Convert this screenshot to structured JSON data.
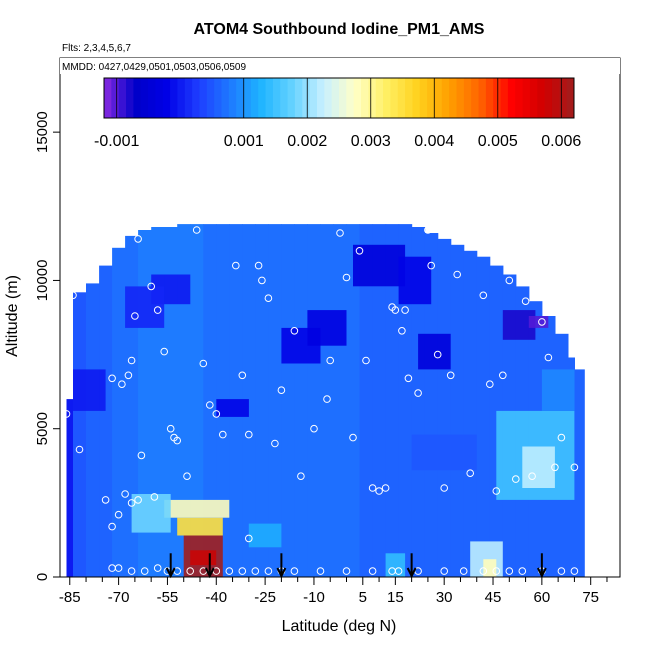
{
  "chart_data": {
    "type": "heatmap",
    "title": "ATOM4 Southbound Iodine_PM1_AMS",
    "subtitle_flights": "Flts: 2,3,4,5,6,7",
    "subtitle_dates": "MMDD: 0427,0429,0501,0503,0506,0509",
    "xlabel": "Latitude (deg N)",
    "ylabel": "Altitude (m)",
    "xlim": [
      -88,
      84
    ],
    "ylim": [
      0,
      17500
    ],
    "x_ticks": [
      -85,
      -70,
      -55,
      -40,
      -25,
      -10,
      5,
      15,
      30,
      45,
      60,
      75
    ],
    "x_minor_ticks": [
      -80,
      -75,
      -65,
      -60,
      -50,
      -45,
      -35,
      -30,
      -20,
      -15,
      -5,
      0,
      10,
      20,
      25,
      35,
      40,
      50,
      55,
      65,
      70,
      80
    ],
    "y_ticks": [
      0,
      5000,
      10000,
      15000
    ],
    "colorbar": {
      "min": -0.0012,
      "max": 0.0062,
      "tick_values": [
        -0.001,
        0.001,
        0.002,
        0.003,
        0.004,
        0.005,
        0.006
      ],
      "tick_labels": [
        "-0.001",
        "0.001",
        "0.002",
        "0.003",
        "0.004",
        "0.005",
        "0.006"
      ],
      "colors": [
        "#8a2be2",
        "#0000c8",
        "#0000e6",
        "#1e3cff",
        "#1e78ff",
        "#1eb4ff",
        "#64d2ff",
        "#c8f0ff",
        "#ffffc8",
        "#fff064",
        "#ffd21e",
        "#ffa000",
        "#ff6400",
        "#ff0000",
        "#d20000",
        "#a01e1e"
      ]
    },
    "curtain_columns": [
      [
        -86,
        0,
        6000,
        0.0
      ],
      [
        -84,
        0,
        9600,
        0.0005
      ],
      [
        -80,
        0,
        9900,
        0.0006
      ],
      [
        -76,
        0,
        10500,
        0.0006
      ],
      [
        -72,
        0,
        11100,
        0.0007
      ],
      [
        -68,
        0,
        11500,
        0.0007
      ],
      [
        -64,
        0,
        11700,
        0.0008
      ],
      [
        -60,
        0,
        11800,
        0.0008
      ],
      [
        -56,
        0,
        11800,
        0.0008
      ],
      [
        -52,
        0,
        11900,
        0.0008
      ],
      [
        -48,
        0,
        11900,
        0.0008
      ],
      [
        -44,
        0,
        11900,
        0.0007
      ],
      [
        -40,
        0,
        11900,
        0.0007
      ],
      [
        -36,
        0,
        11900,
        0.0007
      ],
      [
        -32,
        0,
        11900,
        0.0007
      ],
      [
        -28,
        0,
        11900,
        0.0007
      ],
      [
        -24,
        0,
        11900,
        0.0007
      ],
      [
        -20,
        0,
        11900,
        0.0007
      ],
      [
        -16,
        0,
        11900,
        0.0007
      ],
      [
        -12,
        0,
        11900,
        0.0007
      ],
      [
        -8,
        0,
        11900,
        0.0007
      ],
      [
        -4,
        0,
        11900,
        0.0007
      ],
      [
        0,
        0,
        11900,
        0.0007
      ],
      [
        4,
        0,
        11900,
        0.0006
      ],
      [
        8,
        0,
        11900,
        0.0006
      ],
      [
        12,
        0,
        11900,
        0.0006
      ],
      [
        16,
        0,
        11900,
        0.0006
      ],
      [
        20,
        0,
        11800,
        0.0006
      ],
      [
        24,
        0,
        11600,
        0.0006
      ],
      [
        28,
        0,
        11400,
        0.0006
      ],
      [
        32,
        0,
        11200,
        0.0006
      ],
      [
        36,
        0,
        11000,
        0.0006
      ],
      [
        40,
        0,
        10800,
        0.0006
      ],
      [
        44,
        0,
        10500,
        0.0006
      ],
      [
        48,
        0,
        10200,
        0.0006
      ],
      [
        52,
        0,
        9800,
        0.0006
      ],
      [
        56,
        0,
        9300,
        0.0006
      ],
      [
        60,
        0,
        8800,
        0.0006
      ],
      [
        64,
        0,
        8200,
        0.0006
      ],
      [
        68,
        0,
        7400,
        0.0006
      ],
      [
        70,
        0,
        7000,
        0.0006
      ]
    ],
    "features": [
      [
        -50,
        -38,
        0,
        1400,
        0.0062
      ],
      [
        -48,
        -40,
        400,
        900,
        0.0058
      ],
      [
        -52,
        -38,
        1400,
        2000,
        0.0035
      ],
      [
        -56,
        -36,
        2000,
        2600,
        0.0028
      ],
      [
        -66,
        -54,
        1500,
        2800,
        0.0018
      ],
      [
        -84,
        -74,
        5600,
        7000,
        0.0
      ],
      [
        -60,
        -48,
        9200,
        10200,
        0.0
      ],
      [
        -68,
        -56,
        8400,
        9800,
        0.0001
      ],
      [
        -40,
        -30,
        5400,
        6000,
        -0.0002
      ],
      [
        -20,
        -8,
        7200,
        8400,
        -0.0002
      ],
      [
        -12,
        0,
        7800,
        9000,
        -0.0003
      ],
      [
        2,
        18,
        9800,
        11200,
        -0.0004
      ],
      [
        16,
        26,
        9200,
        10800,
        -0.0002
      ],
      [
        22,
        32,
        7000,
        8200,
        -0.0004
      ],
      [
        48,
        58,
        8000,
        9000,
        -0.0008
      ],
      [
        56,
        62,
        8400,
        8800,
        -0.001
      ],
      [
        46,
        70,
        2600,
        5600,
        0.0015
      ],
      [
        54,
        64,
        3000,
        4400,
        0.0022
      ],
      [
        38,
        48,
        0,
        1200,
        0.0022
      ],
      [
        42,
        46,
        0,
        600,
        0.0028
      ],
      [
        12,
        18,
        0,
        800,
        0.0014
      ],
      [
        20,
        40,
        3600,
        4800,
        0.0005
      ],
      [
        -30,
        -20,
        1000,
        1800,
        0.0012
      ],
      [
        60,
        70,
        5600,
        7000,
        0.0009
      ]
    ],
    "sample_points": [
      [
        -86,
        5500
      ],
      [
        -84,
        9500
      ],
      [
        -82,
        4300
      ],
      [
        -72,
        6700
      ],
      [
        -69,
        6500
      ],
      [
        -67,
        6800
      ],
      [
        -66,
        7300
      ],
      [
        -65,
        8800
      ],
      [
        -64,
        11400
      ],
      [
        -60,
        9800
      ],
      [
        -58,
        9000
      ],
      [
        -56,
        7600
      ],
      [
        -54,
        5000
      ],
      [
        -52,
        4600
      ],
      [
        -46,
        11700
      ],
      [
        -44,
        7200
      ],
      [
        -42,
        5800
      ],
      [
        -40,
        5500
      ],
      [
        -38,
        4800
      ],
      [
        -34,
        10500
      ],
      [
        -32,
        6800
      ],
      [
        -30,
        4800
      ],
      [
        -27,
        10500
      ],
      [
        -26,
        10000
      ],
      [
        -24,
        9400
      ],
      [
        -22,
        4500
      ],
      [
        -20,
        6300
      ],
      [
        -16,
        8300
      ],
      [
        -10,
        5000
      ],
      [
        -6,
        6000
      ],
      [
        -2,
        11600
      ],
      [
        0,
        10100
      ],
      [
        4,
        11000
      ],
      [
        6,
        7300
      ],
      [
        8,
        3000
      ],
      [
        10,
        2900
      ],
      [
        12,
        3000
      ],
      [
        14,
        9100
      ],
      [
        15,
        9000
      ],
      [
        17,
        8300
      ],
      [
        18,
        9000
      ],
      [
        19,
        6700
      ],
      [
        22,
        6200
      ],
      [
        25,
        11700
      ],
      [
        26,
        10500
      ],
      [
        28,
        7500
      ],
      [
        30,
        3000
      ],
      [
        32,
        6800
      ],
      [
        34,
        10200
      ],
      [
        38,
        3500
      ],
      [
        42,
        9500
      ],
      [
        44,
        6500
      ],
      [
        46,
        2900
      ],
      [
        48,
        6800
      ],
      [
        50,
        10000
      ],
      [
        52,
        3300
      ],
      [
        55,
        9300
      ],
      [
        57,
        3400
      ],
      [
        60,
        8600
      ],
      [
        62,
        7400
      ],
      [
        64,
        3700
      ],
      [
        66,
        4700
      ],
      [
        70,
        3700
      ],
      [
        -74,
        2600
      ],
      [
        -72,
        1700
      ],
      [
        -70,
        2100
      ],
      [
        -68,
        2800
      ],
      [
        -66,
        2500
      ],
      [
        -64,
        2600
      ],
      [
        -72,
        300
      ],
      [
        -70,
        300
      ],
      [
        -66,
        200
      ],
      [
        -62,
        200
      ],
      [
        -58,
        300
      ],
      [
        -55,
        200
      ],
      [
        -52,
        200
      ],
      [
        -48,
        200
      ],
      [
        -44,
        200
      ],
      [
        -40,
        200
      ],
      [
        -36,
        200
      ],
      [
        -32,
        200
      ],
      [
        -28,
        200
      ],
      [
        -24,
        200
      ],
      [
        -20,
        200
      ],
      [
        -16,
        200
      ],
      [
        -8,
        200
      ],
      [
        0,
        200
      ],
      [
        8,
        200
      ],
      [
        14,
        200
      ],
      [
        16,
        200
      ],
      [
        22,
        200
      ],
      [
        30,
        200
      ],
      [
        36,
        200
      ],
      [
        42,
        200
      ],
      [
        46,
        200
      ],
      [
        50,
        200
      ],
      [
        54,
        200
      ],
      [
        60,
        200
      ],
      [
        66,
        200
      ],
      [
        70,
        200
      ],
      [
        -30,
        1300
      ],
      [
        -14,
        3400
      ],
      [
        -5,
        7300
      ],
      [
        2,
        4700
      ],
      [
        -59,
        2700
      ],
      [
        -53,
        4700
      ],
      [
        -49,
        3400
      ],
      [
        -63,
        4100
      ]
    ],
    "profile_arrows": [
      -54,
      -42,
      -20,
      20,
      60
    ]
  }
}
